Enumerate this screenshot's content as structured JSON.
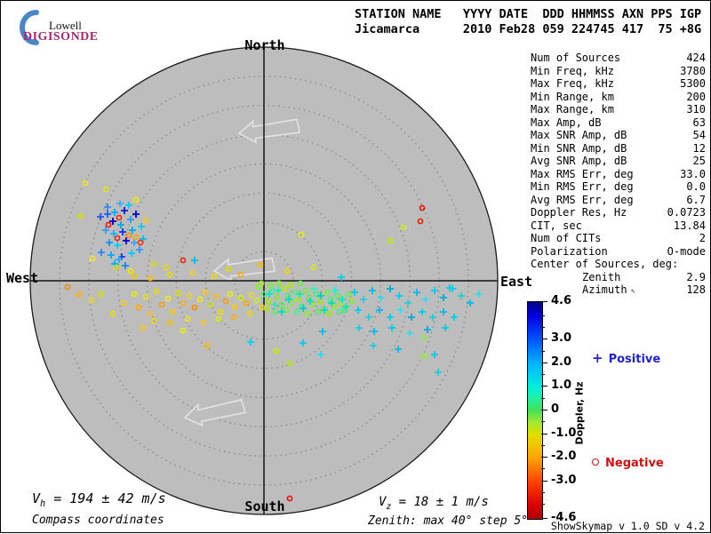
{
  "logo": {
    "line1": "Lowell",
    "line2": "DIGISONDE"
  },
  "header": {
    "line1": "STATION NAME   YYYY DATE  DDD HHMMSS AXN PPS IGP",
    "line2": "Jicamarca      2010 Feb28 059 224745 417  75 +8G"
  },
  "stats": {
    "rows": [
      {
        "label": "Num of Sources",
        "value": "424"
      },
      {
        "label": "Min Freq, kHz",
        "value": "3780"
      },
      {
        "label": "Max Freq, kHz",
        "value": "5300"
      },
      {
        "label": "Min Range, km",
        "value": "200"
      },
      {
        "label": "Max Range, km",
        "value": "310"
      },
      {
        "label": "Max Amp, dB",
        "value": "63"
      },
      {
        "label": "Max SNR Amp, dB",
        "value": "54"
      },
      {
        "label": "Min SNR Amp, dB",
        "value": "12"
      },
      {
        "label": "Avg SNR Amp, dB",
        "value": "25"
      },
      {
        "label": "Max RMS Err, deg",
        "value": "33.0"
      },
      {
        "label": "Min RMS Err, deg",
        "value": "0.0"
      },
      {
        "label": "Avg RMS Err, deg",
        "value": "6.7"
      },
      {
        "label": "Doppler Res, Hz",
        "value": "0.0723"
      },
      {
        "label": "CIT, sec",
        "value": "13.84"
      },
      {
        "label": "Num of CITs",
        "value": "2"
      },
      {
        "label": "Polarization",
        "value": "O-mode"
      },
      {
        "label": "Center of Sources, deg:",
        "value": ""
      },
      {
        "label": "Zenith",
        "value": "2.9",
        "indent": true
      },
      {
        "label": "Azimuth",
        "value": "128",
        "indent": true,
        "icon": "↖"
      }
    ]
  },
  "footer": {
    "vh": {
      "base": "V",
      "sub": "h",
      "rest": " = 194 ± 42 m/s"
    },
    "mode": "Compass coordinates",
    "vz": {
      "base": "V",
      "sub": "z",
      "rest": " = 18 ± 1 m/s"
    },
    "zenith_note": "Zenith: max 40°  step 5°",
    "version": "ShowSkymap v 1.0  SD v 4.2"
  },
  "chart_data": {
    "type": "scatter",
    "title": "Digisonde skymap of echo sources, compass coordinates",
    "polar": {
      "max_zenith_deg": 40,
      "step_deg": 5,
      "compass": {
        "north": "North",
        "south": "South",
        "east": "East",
        "west": "West"
      }
    },
    "colorbar": {
      "label": "Doppler, Hz",
      "min": -4.6,
      "max": 4.6,
      "major_ticks": [
        {
          "v": 4.6,
          "label": "4.6"
        },
        {
          "v": 3.0,
          "label": "3.0"
        },
        {
          "v": 2.0,
          "label": "2.0"
        },
        {
          "v": 1.0,
          "label": "1.0"
        },
        {
          "v": 0,
          "label": "0"
        },
        {
          "v": -1.0,
          "label": "-1.0"
        },
        {
          "v": -2.0,
          "label": "-2.0"
        },
        {
          "v": -3.0,
          "label": "-3.0"
        },
        {
          "v": -4.6,
          "label": "-4.6"
        }
      ],
      "minor_ticks": [
        4.0,
        3.5,
        2.5,
        1.5,
        0.5,
        -0.5,
        -1.5,
        -2.5,
        -3.5,
        -4.0
      ]
    },
    "legend": {
      "positive_marker": "+",
      "positive_label": "Positive",
      "positive_color": "#2222cc",
      "negative_marker": "o",
      "negative_label": "Negative",
      "negative_color": "#cc1111"
    },
    "points": [
      [
        112,
        243,
        "p",
        "#2255ee"
      ],
      [
        120,
        232,
        "p",
        "#3388ff"
      ],
      [
        128,
        238,
        "p",
        "#00aaff"
      ],
      [
        134,
        228,
        "p",
        "#44aaff"
      ],
      [
        139,
        236,
        "p",
        "#0022cc"
      ],
      [
        144,
        230,
        "p",
        "#00ccff"
      ],
      [
        126,
        248,
        "p",
        "#0000bb"
      ],
      [
        135,
        252,
        "p",
        "#00aaee"
      ],
      [
        146,
        246,
        "p",
        "#2299ff"
      ],
      [
        152,
        240,
        "p",
        "#0000dd"
      ],
      [
        118,
        258,
        "p",
        "#3399ff"
      ],
      [
        127,
        262,
        "p",
        "#00bbff"
      ],
      [
        137,
        260,
        "p",
        "#0033ee"
      ],
      [
        148,
        258,
        "p",
        "#00aaff"
      ],
      [
        158,
        254,
        "p",
        "#00ccee"
      ],
      [
        122,
        272,
        "p",
        "#0099ff"
      ],
      [
        131,
        275,
        "p",
        "#00ccff"
      ],
      [
        141,
        270,
        "p",
        "#0000cc"
      ],
      [
        150,
        272,
        "p",
        "#33aaff"
      ],
      [
        160,
        268,
        "p",
        "#00bbff"
      ],
      [
        113,
        283,
        "p",
        "#2288ff"
      ],
      [
        124,
        286,
        "p",
        "#00aaff"
      ],
      [
        136,
        288,
        "p",
        "#0044ff"
      ],
      [
        147,
        284,
        "p",
        "#00ccff"
      ],
      [
        156,
        280,
        "p",
        "#3399ff"
      ],
      [
        128,
        296,
        "p",
        "#00aaff"
      ],
      [
        140,
        298,
        "p",
        "#0088ff"
      ],
      [
        120,
        240,
        "p",
        "#0066ff"
      ],
      [
        121,
        252,
        "o",
        "#ee1100"
      ],
      [
        133,
        244,
        "o",
        "#ff2200"
      ],
      [
        131,
        267,
        "o",
        "#ee2200"
      ],
      [
        144,
        264,
        "o",
        "#ff8800"
      ],
      [
        152,
        266,
        "o",
        "#ffaa00"
      ],
      [
        157,
        272,
        "o",
        "#ee3300"
      ],
      [
        163,
        247,
        "o",
        "#ffcc00"
      ],
      [
        95,
        205,
        "o",
        "#eeee00"
      ],
      [
        118,
        212,
        "o",
        "#ddee00"
      ],
      [
        152,
        224,
        "o",
        "#eeee00"
      ],
      [
        90,
        242,
        "o",
        "#dddd00"
      ],
      [
        103,
        290,
        "o",
        "#eeee22"
      ],
      [
        130,
        300,
        "o",
        "#ccdd00"
      ],
      [
        146,
        304,
        "o",
        "#eeee00"
      ],
      [
        172,
        296,
        "o",
        "#dddd00"
      ],
      [
        186,
        300,
        "o",
        "#eedd00"
      ],
      [
        150,
        310,
        "o",
        "#eecc00"
      ],
      [
        168,
        312,
        "o",
        "#ffbb00"
      ],
      [
        190,
        308,
        "o",
        "#eedd00"
      ],
      [
        216,
        306,
        "o",
        "#ffcc22"
      ],
      [
        240,
        310,
        "o",
        "#eedd00"
      ],
      [
        256,
        302,
        "o",
        "#dddd00"
      ],
      [
        270,
        308,
        "o",
        "#ffaa00"
      ],
      [
        322,
        304,
        "o",
        "#eedd00"
      ],
      [
        338,
        263,
        "o",
        "#eeee00"
      ],
      [
        352,
        300,
        "o",
        "#ddee00"
      ],
      [
        292,
        297,
        "o",
        "#ffbb00"
      ],
      [
        205,
        292,
        "o",
        "#ee2200"
      ],
      [
        218,
        292,
        "p",
        "#00bbee"
      ],
      [
        383,
        311,
        "p",
        "#00ccee"
      ],
      [
        133,
        291,
        "p",
        "#22aaff"
      ],
      [
        474,
        233,
        "o",
        "#ee1100"
      ],
      [
        472,
        248,
        "o",
        "#dd2200"
      ],
      [
        453,
        255,
        "o",
        "#ccee22"
      ],
      [
        438,
        270,
        "o",
        "#bbee00"
      ],
      [
        88,
        330,
        "o",
        "#ffaa00"
      ],
      [
        102,
        337,
        "o",
        "#eedd00"
      ],
      [
        75,
        322,
        "o",
        "#ff8800"
      ],
      [
        112,
        330,
        "o",
        "#dddd00"
      ],
      [
        126,
        352,
        "o",
        "#eedd00"
      ],
      [
        138,
        340,
        "o",
        "#ffcc00"
      ],
      [
        150,
        330,
        "o",
        "#eeee00"
      ],
      [
        155,
        345,
        "o",
        "#ffaa00"
      ],
      [
        163,
        333,
        "o",
        "#ddee00"
      ],
      [
        168,
        352,
        "o",
        "#ffbb33"
      ],
      [
        175,
        327,
        "o",
        "#eedd00"
      ],
      [
        181,
        342,
        "o",
        "#ff9900"
      ],
      [
        188,
        335,
        "o",
        "#eeee22"
      ],
      [
        193,
        350,
        "o",
        "#ffcc00"
      ],
      [
        200,
        329,
        "o",
        "#dddd11"
      ],
      [
        205,
        340,
        "o",
        "#ffaa22"
      ],
      [
        212,
        332,
        "o",
        "#eedd00"
      ],
      [
        218,
        345,
        "o",
        "#ff8800"
      ],
      [
        224,
        336,
        "o",
        "#eeee00"
      ],
      [
        230,
        328,
        "o",
        "#ffcc00"
      ],
      [
        236,
        342,
        "o",
        "#ccdd22"
      ],
      [
        242,
        333,
        "o",
        "#ffbb00"
      ],
      [
        247,
        350,
        "o",
        "#eedd00"
      ],
      [
        253,
        338,
        "o",
        "#ff9900"
      ],
      [
        258,
        330,
        "o",
        "#eeee00"
      ],
      [
        263,
        344,
        "o",
        "#ffcc00"
      ],
      [
        270,
        334,
        "o",
        "#ddee00"
      ],
      [
        276,
        340,
        "o",
        "#ffaa00"
      ],
      [
        282,
        331,
        "o",
        "#eedd11"
      ],
      [
        288,
        337,
        "o",
        "#ccee22"
      ],
      [
        294,
        345,
        "o",
        "#ffcc00"
      ],
      [
        172,
        360,
        "o",
        "#eedd00"
      ],
      [
        190,
        362,
        "o",
        "#ffbb00"
      ],
      [
        210,
        358,
        "o",
        "#eeee00"
      ],
      [
        228,
        362,
        "o",
        "#ffcc00"
      ],
      [
        245,
        358,
        "o",
        "#ddee00"
      ],
      [
        262,
        356,
        "o",
        "#ffaa00"
      ],
      [
        280,
        352,
        "o",
        "#eedd00"
      ],
      [
        160,
        368,
        "o",
        "#ffcc00"
      ],
      [
        205,
        371,
        "o",
        "#eeee00"
      ],
      [
        232,
        388,
        "o",
        "#ffbb00"
      ],
      [
        310,
        394,
        "o",
        "#ccee00"
      ],
      [
        325,
        408,
        "o",
        "#aaee00"
      ],
      [
        281,
        384,
        "p",
        "#00ccee"
      ],
      [
        290,
        322,
        "o",
        "#88ee22"
      ],
      [
        296,
        330,
        "o",
        "#55ee66"
      ],
      [
        301,
        338,
        "o",
        "#99ee00"
      ],
      [
        306,
        326,
        "o",
        "#44ee88"
      ],
      [
        311,
        334,
        "o",
        "#77ee33"
      ],
      [
        316,
        342,
        "o",
        "#55ee55"
      ],
      [
        319,
        324,
        "o",
        "#aaee00"
      ],
      [
        323,
        332,
        "o",
        "#44ee77"
      ],
      [
        327,
        340,
        "o",
        "#88ee22"
      ],
      [
        331,
        328,
        "o",
        "#55ee66"
      ],
      [
        335,
        336,
        "o",
        "#99ee11"
      ],
      [
        339,
        344,
        "o",
        "#33ee88"
      ],
      [
        343,
        326,
        "o",
        "#77ee33"
      ],
      [
        347,
        334,
        "o",
        "#55ee55"
      ],
      [
        351,
        342,
        "o",
        "#88ee22"
      ],
      [
        355,
        330,
        "o",
        "#44ee77"
      ],
      [
        359,
        338,
        "o",
        "#99ee00"
      ],
      [
        363,
        346,
        "o",
        "#55ee66"
      ],
      [
        367,
        328,
        "o",
        "#77ee33"
      ],
      [
        371,
        336,
        "o",
        "#44ee88"
      ],
      [
        375,
        344,
        "o",
        "#88ee22"
      ],
      [
        379,
        332,
        "o",
        "#55ee55"
      ],
      [
        383,
        340,
        "o",
        "#99ee11"
      ],
      [
        387,
        348,
        "o",
        "#33ee88"
      ],
      [
        391,
        330,
        "o",
        "#66ee44"
      ],
      [
        395,
        338,
        "o",
        "#88ee22"
      ],
      [
        299,
        346,
        "o",
        "#aaee00"
      ],
      [
        309,
        350,
        "o",
        "#55ee66"
      ],
      [
        321,
        348,
        "o",
        "#77ee33"
      ],
      [
        333,
        350,
        "o",
        "#44ee88"
      ],
      [
        345,
        352,
        "o",
        "#88ee22"
      ],
      [
        357,
        350,
        "o",
        "#55ee55"
      ],
      [
        369,
        352,
        "o",
        "#99ee00"
      ],
      [
        381,
        350,
        "o",
        "#44ee77"
      ],
      [
        293,
        318,
        "o",
        "#99ee00"
      ],
      [
        303,
        320,
        "o",
        "#77ee33"
      ],
      [
        313,
        318,
        "o",
        "#88ee22"
      ],
      [
        326,
        320,
        "o",
        "#aaee00"
      ],
      [
        337,
        318,
        "o",
        "#66ee44"
      ],
      [
        302,
        330,
        "p",
        "#00eebb"
      ],
      [
        312,
        326,
        "p",
        "#22eeaa"
      ],
      [
        324,
        336,
        "p",
        "#00ddcc"
      ],
      [
        336,
        330,
        "p",
        "#00eeaa"
      ],
      [
        348,
        338,
        "p",
        "#11ddbb"
      ],
      [
        360,
        332,
        "p",
        "#00ccbb"
      ],
      [
        372,
        340,
        "p",
        "#00ddaa"
      ],
      [
        384,
        336,
        "p",
        "#00eebb"
      ],
      [
        316,
        350,
        "p",
        "#00ddbb"
      ],
      [
        340,
        346,
        "p",
        "#00ccbb"
      ],
      [
        364,
        348,
        "p",
        "#00ddcc"
      ],
      [
        388,
        344,
        "p",
        "#00eeaa"
      ],
      [
        308,
        342,
        "p",
        "#44ddaa"
      ],
      [
        352,
        324,
        "p",
        "#33eebb"
      ],
      [
        376,
        326,
        "p",
        "#00ffcc"
      ],
      [
        398,
        328,
        "p",
        "#00ccee"
      ],
      [
        408,
        336,
        "p",
        "#22ccdd"
      ],
      [
        418,
        326,
        "p",
        "#00bbee"
      ],
      [
        428,
        334,
        "p",
        "#33ddee"
      ],
      [
        438,
        324,
        "p",
        "#00aadd"
      ],
      [
        448,
        332,
        "p",
        "#00ccee"
      ],
      [
        458,
        340,
        "p",
        "#22ccdd"
      ],
      [
        468,
        328,
        "p",
        "#00bbee"
      ],
      [
        478,
        336,
        "p",
        "#33ddee"
      ],
      [
        488,
        326,
        "p",
        "#00ccee"
      ],
      [
        498,
        334,
        "p",
        "#00aadd"
      ],
      [
        508,
        324,
        "p",
        "#00ccee"
      ],
      [
        518,
        332,
        "p",
        "#22ccdd"
      ],
      [
        528,
        340,
        "p",
        "#00bbee"
      ],
      [
        538,
        330,
        "p",
        "#33ddee"
      ],
      [
        402,
        348,
        "p",
        "#00ccee"
      ],
      [
        414,
        356,
        "p",
        "#22ccdd"
      ],
      [
        426,
        348,
        "p",
        "#00bbee"
      ],
      [
        438,
        356,
        "p",
        "#00ccee"
      ],
      [
        450,
        348,
        "p",
        "#33ddee"
      ],
      [
        462,
        356,
        "p",
        "#00aadd"
      ],
      [
        474,
        350,
        "p",
        "#00ccee"
      ],
      [
        486,
        356,
        "p",
        "#22ccdd"
      ],
      [
        498,
        350,
        "p",
        "#00bbee"
      ],
      [
        510,
        356,
        "p",
        "#00ccee"
      ],
      [
        403,
        368,
        "p",
        "#22ccdd"
      ],
      [
        420,
        372,
        "p",
        "#00bbee"
      ],
      [
        440,
        368,
        "p",
        "#00ccee"
      ],
      [
        460,
        374,
        "p",
        "#33ddee"
      ],
      [
        480,
        370,
        "p",
        "#00aadd"
      ],
      [
        500,
        368,
        "p",
        "#00ccee"
      ],
      [
        419,
        388,
        "p",
        "#22ccdd"
      ],
      [
        447,
        392,
        "p",
        "#00bbee"
      ],
      [
        476,
        379,
        "o",
        "#88ee44"
      ],
      [
        476,
        400,
        "o",
        "#99ee33"
      ],
      [
        488,
        398,
        "p",
        "#00ccee"
      ],
      [
        492,
        418,
        "p",
        "#22ccdd"
      ],
      [
        340,
        385,
        "p",
        "#00ccee"
      ],
      [
        360,
        398,
        "p",
        "#22ddee"
      ],
      [
        362,
        372,
        "p",
        "#00bbee"
      ],
      [
        505,
        323,
        "p",
        "#00ccee"
      ],
      [
        325,
        560,
        "o",
        "#ee1100"
      ]
    ]
  }
}
